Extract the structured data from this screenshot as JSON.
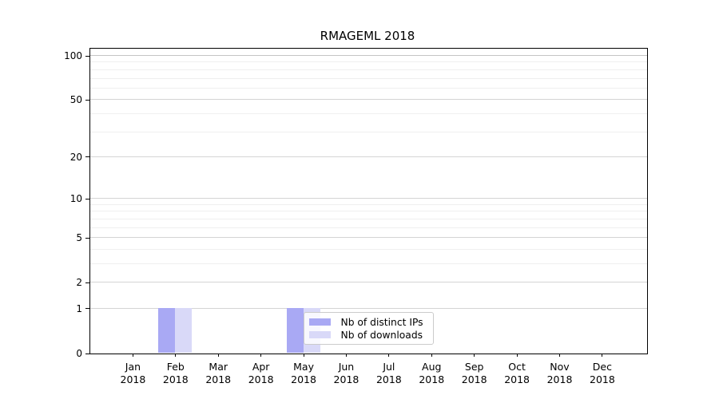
{
  "chart_data": {
    "type": "bar",
    "title": "RMAGEML 2018",
    "categories": [
      "Jan",
      "Feb",
      "Mar",
      "Apr",
      "May",
      "Jun",
      "Jul",
      "Aug",
      "Sep",
      "Oct",
      "Nov",
      "Dec"
    ],
    "year_label": "2018",
    "series": [
      {
        "name": "Nb of distinct IPs",
        "color": "#a9a9f4",
        "values": [
          0,
          1,
          0,
          0,
          1,
          0,
          0,
          0,
          0,
          0,
          0,
          0
        ]
      },
      {
        "name": "Nb of downloads",
        "color": "#d9d9f8",
        "values": [
          0,
          1,
          0,
          0,
          1,
          0,
          0,
          0,
          0,
          0,
          0,
          0
        ]
      }
    ],
    "yticks": [
      0,
      1,
      2,
      5,
      10,
      20,
      50,
      100
    ],
    "minor_gridlines": [
      3,
      4,
      6,
      7,
      8,
      9,
      30,
      40,
      60,
      70,
      80,
      90
    ],
    "scale": "log10(1+v)",
    "ylim": [
      0,
      112
    ],
    "grid": "horizontal",
    "legend_position": "inside-bottom-center",
    "bar_value_at_top_of_bars": 1
  }
}
